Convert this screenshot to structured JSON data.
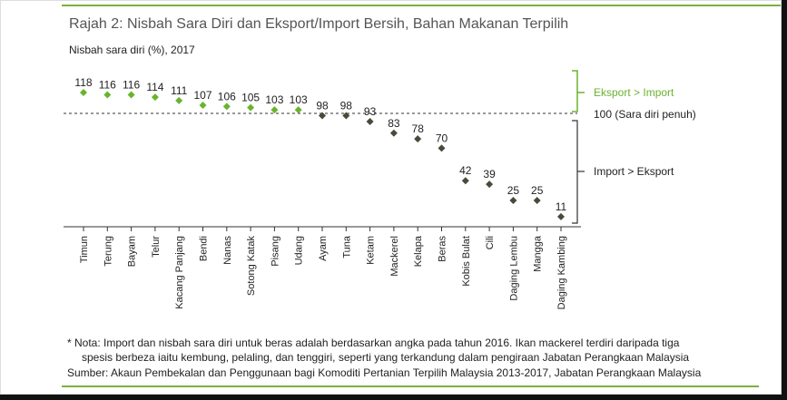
{
  "title": "Rajah 2: Nisbah Sara Diri dan Eksport/Import Bersih, Bahan Makanan Terpilih",
  "subtitle": "Nisbah sara diri (%), 2017",
  "colors": {
    "export": "#6ab32e",
    "import": "#4a4a3a",
    "accent": "#7bb03e",
    "bracket": "#6ab32e",
    "bracket_dark": "#333333"
  },
  "annotations": {
    "export_label": "Eksport > Import",
    "import_label": "Import  > Eksport",
    "reference_label": "100 (Sara diri penuh)"
  },
  "chart_data": {
    "type": "scatter",
    "title": "Rajah 2: Nisbah Sara Diri dan Eksport/Import Bersih, Bahan Makanan Terpilih",
    "ylabel": "Nisbah sara diri (%), 2017",
    "categories": [
      "Timun",
      "Terung",
      "Bayam",
      "Telur",
      "Kacang Panjang",
      "Bendi",
      "Nanas",
      "Sotong Katak",
      "Pisang",
      "Udang",
      "Ayam",
      "Tuna",
      "Ketam",
      "Mackerel",
      "Kelapa",
      "Beras",
      "Kobis Bulat",
      "Cili",
      "Daging Lembu",
      "Mangga",
      "Daging Kambing"
    ],
    "values": [
      118,
      116,
      116,
      114,
      111,
      107,
      106,
      105,
      103,
      103,
      98,
      98,
      93,
      83,
      78,
      70,
      42,
      39,
      25,
      25,
      11
    ],
    "value_labels": [
      "118",
      "116",
      "116",
      "114",
      "111",
      "107",
      "106",
      "105",
      "103",
      "103",
      "98",
      "98",
      "93",
      "83",
      "78",
      "70",
      "42",
      "39",
      "25",
      "25",
      "11"
    ],
    "reference_line": 100,
    "ylim": [
      0,
      125
    ],
    "grid": false,
    "legend": "right"
  },
  "note": {
    "line1": "* Nota: Import dan nisbah sara diri untuk beras adalah berdasarkan angka pada tahun 2016. Ikan mackerel terdiri daripada tiga",
    "line2": "spesis berbeza iaitu kembung, pelaling, dan tenggiri, seperti yang terkandung dalam pengiraan Jabatan Perangkaan Malaysia"
  },
  "source": "Sumber: Akaun Pembekalan dan Penggunaan bagi Komoditi Pertanian Terpilih Malaysia 2013-2017, Jabatan Perangkaan Malaysia"
}
